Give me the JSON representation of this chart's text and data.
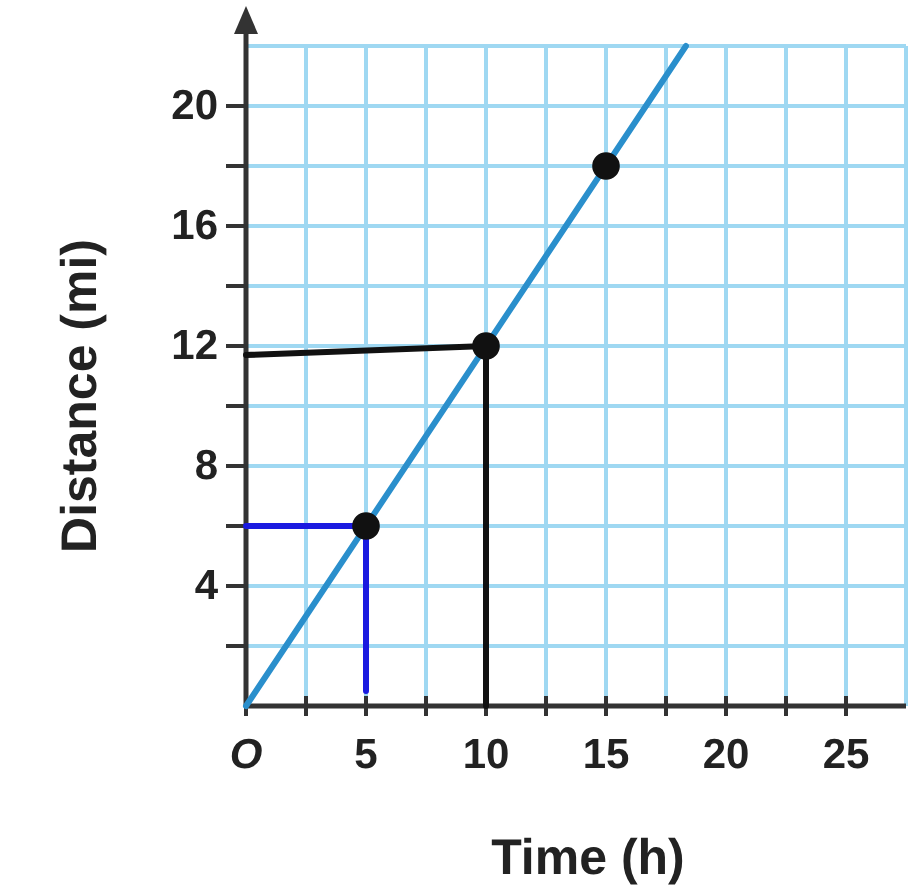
{
  "chart_data": {
    "type": "line",
    "xlabel": "Time (h)",
    "ylabel": "Distance (mi)",
    "xlim": [
      0,
      27.5
    ],
    "ylim": [
      0,
      22
    ],
    "xticks": [
      {
        "value": 0,
        "label": "O"
      },
      {
        "value": 2.5,
        "label": null
      },
      5,
      {
        "value": 7.5,
        "label": null
      },
      10,
      {
        "value": 12.5,
        "label": null
      },
      15,
      {
        "value": 17.5,
        "label": null
      },
      20,
      {
        "value": 22.5,
        "label": null
      },
      25
    ],
    "yticks": [
      {
        "value": 2,
        "label": null
      },
      4,
      {
        "value": 6,
        "label": null
      },
      8,
      {
        "value": 10,
        "label": null
      },
      12,
      {
        "value": 14,
        "label": null
      },
      16,
      {
        "value": 18,
        "label": null
      },
      20
    ],
    "grid": true,
    "marker": "none",
    "series": [
      {
        "color": "#2a8fcc",
        "x": [
          0,
          18.33
        ],
        "values": [
          0,
          22
        ]
      },
      {
        "type": "scatter",
        "marker": "circle",
        "color": "#111111",
        "x": [
          5,
          10,
          15
        ],
        "values": [
          6,
          12,
          18
        ]
      },
      {
        "color": "#1a1ae0",
        "x": [
          0,
          5,
          5
        ],
        "values": [
          6,
          6,
          0.5
        ]
      },
      {
        "color": "#111111",
        "x": [
          0,
          10,
          10
        ],
        "values": [
          11.7,
          12,
          0
        ]
      }
    ]
  }
}
